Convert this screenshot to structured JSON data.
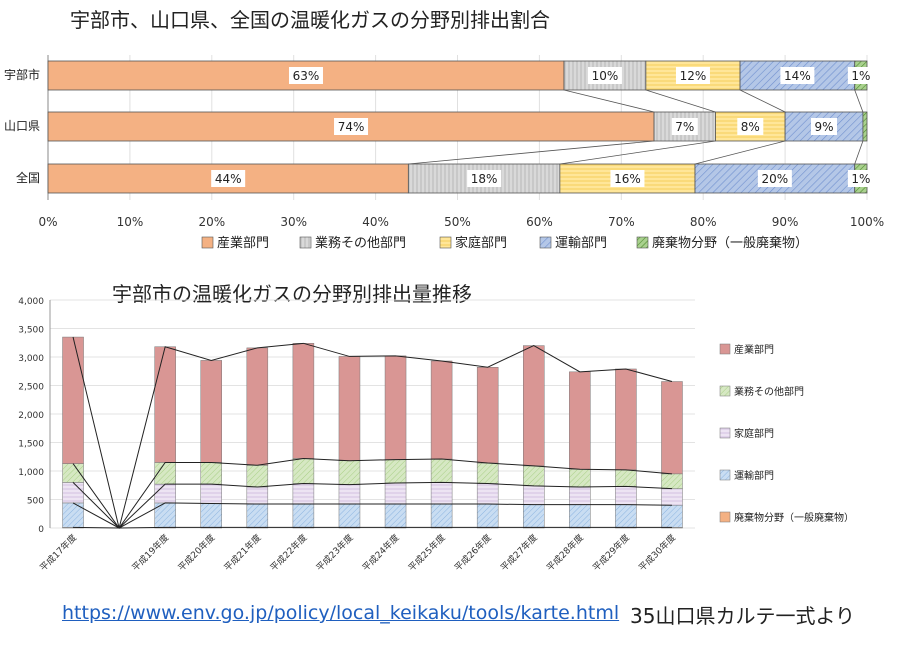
{
  "colors": {
    "industry_top": "#F4B183",
    "business": "#D9D9D9",
    "household": "#FFE699",
    "transport": "#8FAADC",
    "waste": "#70AD47",
    "industry_bottom": "#D99694",
    "business_bottom": "#C5E0B4",
    "household_bottom": "#E2D6EB",
    "transport_bottom": "#9DC3E6",
    "waste_bottom": "#F4B183"
  },
  "chart_data": [
    {
      "type": "bar",
      "orientation": "horizontal",
      "stacked": "100%",
      "title": "宇部市、山口県、全国の温暖化ガスの分野別排出割合",
      "categories": [
        "宇部市",
        "山口県",
        "全国"
      ],
      "series": [
        {
          "name": "産業部門",
          "values": [
            63,
            74,
            44
          ],
          "labels": [
            "63%",
            "74%",
            "44%"
          ]
        },
        {
          "name": "業務その他部門",
          "values": [
            10,
            7.5,
            18.5
          ],
          "labels": [
            "10%",
            "7%",
            "18%"
          ]
        },
        {
          "name": "家庭部門",
          "values": [
            11.5,
            8.5,
            16.5
          ],
          "labels": [
            "12%",
            "8%",
            "16%"
          ]
        },
        {
          "name": "運輸部門",
          "values": [
            14,
            9.5,
            19.5
          ],
          "labels": [
            "14%",
            "9%",
            "20%"
          ]
        },
        {
          "name": "廃棄物分野（一般廃棄物）",
          "values": [
            1.5,
            0.5,
            1.5
          ],
          "labels": [
            "1%",
            "",
            "1%"
          ]
        }
      ],
      "xlim": [
        0,
        100
      ],
      "xticks": [
        "0%",
        "10%",
        "20%",
        "30%",
        "40%",
        "50%",
        "60%",
        "70%",
        "80%",
        "90%",
        "100%"
      ],
      "legend": "bottom"
    },
    {
      "type": "bar",
      "stacked": true,
      "title": "宇部市の温暖化ガスの分野別排出量推移",
      "categories": [
        "平成17年度",
        "",
        "平成19年度",
        "平成20年度",
        "平成21年度",
        "平成22年度",
        "平成23年度",
        "平成24年度",
        "平成25年度",
        "平成26年度",
        "平成27年度",
        "平成28年度",
        "平成29年度",
        "平成30年度"
      ],
      "series": [
        {
          "name": "廃棄物分野（一般廃棄物）",
          "values": [
            10,
            null,
            10,
            10,
            10,
            10,
            10,
            10,
            10,
            10,
            10,
            10,
            10,
            10
          ]
        },
        {
          "name": "運輸部門",
          "values": [
            430,
            null,
            430,
            420,
            410,
            410,
            410,
            410,
            410,
            410,
            400,
            400,
            400,
            390
          ]
        },
        {
          "name": "家庭部門",
          "values": [
            360,
            null,
            330,
            340,
            300,
            360,
            340,
            370,
            380,
            360,
            330,
            310,
            320,
            290
          ]
        },
        {
          "name": "業務その他部門",
          "values": [
            330,
            null,
            380,
            380,
            380,
            440,
            420,
            410,
            410,
            360,
            350,
            310,
            290,
            260
          ]
        },
        {
          "name": "産業部門",
          "values": [
            2220,
            null,
            2030,
            1790,
            2060,
            2020,
            1830,
            1820,
            1720,
            1680,
            2110,
            1710,
            1770,
            1620
          ]
        }
      ],
      "ylim": [
        0,
        4000
      ],
      "yticks": [
        "0",
        "500",
        "1,000",
        "1,500",
        "2,000",
        "2,500",
        "3,000",
        "3,500",
        "4,000"
      ],
      "legend": "right"
    }
  ],
  "footer": {
    "url": "https://www.env.go.jp/policy/local_keikaku/tools/karte.html",
    "source": "35山口県カルテ一式より"
  }
}
